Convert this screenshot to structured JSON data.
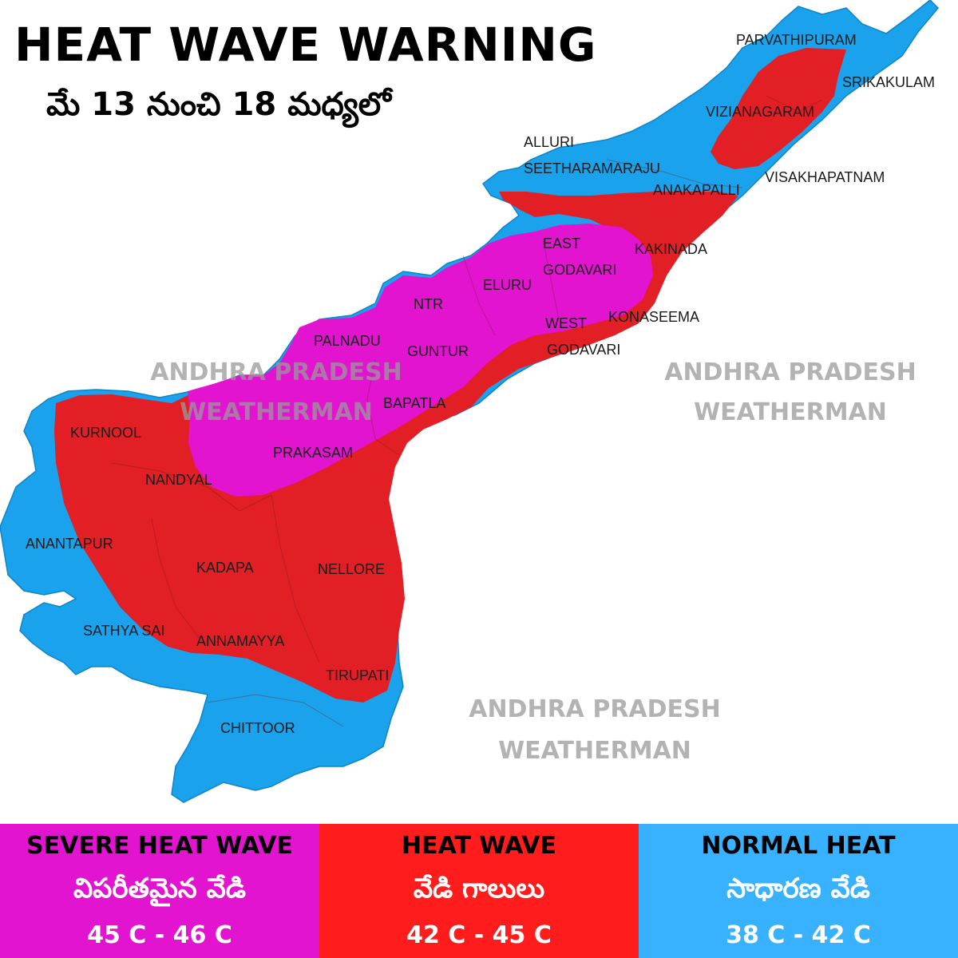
{
  "title": "HEAT WAVE WARNING",
  "subtitle": "మే 13 నుంచి 18 మధ్యలో",
  "colors": {
    "severe": "#e214d0",
    "heat": "#e31f26",
    "normal": "#1aa3ec",
    "legend_heat": "#ff1c1c",
    "legend_normal": "#38b2ff"
  },
  "map": {
    "districts": {
      "parvathipuram": "PARVATHIPURAM",
      "srikakulam": "SRIKAKULAM",
      "vizianagaram": "VIZIANAGARAM",
      "alluri_1": "ALLURI",
      "alluri_2": "SEETHARAMARAJU",
      "visakhapatnam": "VISAKHAPATNAM",
      "anakapalli": "ANAKAPALLI",
      "kakinada": "KAKINADA",
      "east_1": "EAST",
      "east_2": "GODAVARI",
      "eluru": "ELURU",
      "ntr": "NTR",
      "konaseema": "KONASEEMA",
      "west_1": "WEST",
      "west_2": "GODAVARI",
      "palnadu": "PALNADU",
      "guntur": "GUNTUR",
      "bapatla": "BAPATLA",
      "kurnool": "KURNOOL",
      "prakasam": "PRAKASAM",
      "nandyal": "NANDYAL",
      "anantapur": "ANANTAPUR",
      "kadapa": "KADAPA",
      "nellore": "NELLORE",
      "sathya_sai": "SATHYA SAI",
      "annamayya": "ANNAMAYYA",
      "tirupati": "TIRUPATI",
      "chittoor": "CHITTOOR"
    },
    "watermarks": [
      {
        "line1": "ANDHRA PRADESH",
        "line2": "WEATHERMAN"
      },
      {
        "line1": "ANDHRA PRADESH",
        "line2": "WEATHERMAN"
      },
      {
        "line1": "ANDHRA PRADESH",
        "line2": "WEATHERMAN"
      }
    ]
  },
  "legend": [
    {
      "en": "SEVERE HEAT WAVE",
      "te": "విపరీతమైన వేడి",
      "range": "45 C - 46 C"
    },
    {
      "en": "HEAT WAVE",
      "te": "వేడి గాలులు",
      "range": "42 C - 45 C"
    },
    {
      "en": "NORMAL HEAT",
      "te": "సాధారణ వేడి",
      "range": "38 C - 42 C"
    }
  ]
}
